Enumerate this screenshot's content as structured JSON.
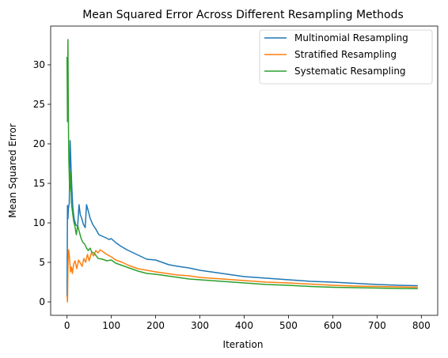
{
  "chart_data": {
    "type": "line",
    "title": "Mean Squared Error Across Different Resampling Methods",
    "xlabel": "Iteration",
    "ylabel": "Mean Squared Error",
    "xlim": [
      -37,
      837
    ],
    "ylim": [
      -1.7,
      34.9
    ],
    "xticks": [
      0,
      100,
      200,
      300,
      400,
      500,
      600,
      700,
      800
    ],
    "yticks": [
      0,
      5,
      10,
      15,
      20,
      25,
      30
    ],
    "grid": false,
    "legend_position": "top-right",
    "series": [
      {
        "name": "Multinomial Resampling",
        "color": "#1f77b4",
        "points": [
          [
            0,
            0.8
          ],
          [
            1,
            12.2
          ],
          [
            2,
            10.5
          ],
          [
            3,
            11.8
          ],
          [
            5,
            12.5
          ],
          [
            7,
            20.4
          ],
          [
            9,
            17.0
          ],
          [
            11,
            14.2
          ],
          [
            13,
            12.0
          ],
          [
            16,
            10.5
          ],
          [
            20,
            9.7
          ],
          [
            24,
            9.6
          ],
          [
            27,
            12.3
          ],
          [
            30,
            11.0
          ],
          [
            33,
            10.6
          ],
          [
            37,
            9.8
          ],
          [
            41,
            9.4
          ],
          [
            44,
            12.3
          ],
          [
            48,
            11.5
          ],
          [
            52,
            10.6
          ],
          [
            58,
            9.8
          ],
          [
            65,
            9.2
          ],
          [
            72,
            8.5
          ],
          [
            80,
            8.3
          ],
          [
            88,
            8.1
          ],
          [
            95,
            7.9
          ],
          [
            100,
            8.0
          ],
          [
            110,
            7.5
          ],
          [
            120,
            7.1
          ],
          [
            135,
            6.6
          ],
          [
            150,
            6.2
          ],
          [
            165,
            5.8
          ],
          [
            180,
            5.4
          ],
          [
            200,
            5.3
          ],
          [
            215,
            5.0
          ],
          [
            230,
            4.7
          ],
          [
            250,
            4.5
          ],
          [
            275,
            4.3
          ],
          [
            300,
            4.0
          ],
          [
            325,
            3.8
          ],
          [
            350,
            3.6
          ],
          [
            375,
            3.4
          ],
          [
            400,
            3.2
          ],
          [
            450,
            3.0
          ],
          [
            500,
            2.8
          ],
          [
            550,
            2.6
          ],
          [
            600,
            2.5
          ],
          [
            650,
            2.35
          ],
          [
            700,
            2.2
          ],
          [
            750,
            2.1
          ],
          [
            792,
            2.05
          ]
        ]
      },
      {
        "name": "Stratified Resampling",
        "color": "#ff7f0e",
        "points": [
          [
            0,
            0.8
          ],
          [
            1,
            0.0
          ],
          [
            2,
            4.0
          ],
          [
            3,
            6.6
          ],
          [
            4,
            6.5
          ],
          [
            6,
            5.2
          ],
          [
            8,
            3.8
          ],
          [
            10,
            4.4
          ],
          [
            12,
            3.6
          ],
          [
            15,
            4.8
          ],
          [
            18,
            5.2
          ],
          [
            22,
            4.2
          ],
          [
            26,
            5.3
          ],
          [
            30,
            4.9
          ],
          [
            34,
            4.5
          ],
          [
            38,
            5.5
          ],
          [
            42,
            5.0
          ],
          [
            46,
            6.0
          ],
          [
            50,
            5.2
          ],
          [
            55,
            6.2
          ],
          [
            60,
            5.8
          ],
          [
            65,
            6.5
          ],
          [
            70,
            6.2
          ],
          [
            75,
            6.6
          ],
          [
            80,
            6.4
          ],
          [
            90,
            6.0
          ],
          [
            100,
            5.7
          ],
          [
            110,
            5.3
          ],
          [
            125,
            5.0
          ],
          [
            140,
            4.6
          ],
          [
            160,
            4.2
          ],
          [
            180,
            4.0
          ],
          [
            200,
            3.8
          ],
          [
            225,
            3.6
          ],
          [
            250,
            3.4
          ],
          [
            275,
            3.3
          ],
          [
            300,
            3.1
          ],
          [
            350,
            2.9
          ],
          [
            400,
            2.7
          ],
          [
            450,
            2.5
          ],
          [
            500,
            2.4
          ],
          [
            550,
            2.25
          ],
          [
            600,
            2.1
          ],
          [
            650,
            2.0
          ],
          [
            700,
            1.95
          ],
          [
            750,
            1.9
          ],
          [
            792,
            1.85
          ]
        ]
      },
      {
        "name": "Systematic Resampling",
        "color": "#2ca02c",
        "points": [
          [
            0,
            31.0
          ],
          [
            1,
            22.8
          ],
          [
            2,
            33.2
          ],
          [
            3,
            23.5
          ],
          [
            4,
            18.0
          ],
          [
            6,
            14.0
          ],
          [
            8,
            16.5
          ],
          [
            10,
            12.5
          ],
          [
            12,
            11.5
          ],
          [
            15,
            10.2
          ],
          [
            18,
            9.5
          ],
          [
            21,
            8.5
          ],
          [
            24,
            9.7
          ],
          [
            28,
            8.8
          ],
          [
            32,
            8.0
          ],
          [
            36,
            7.5
          ],
          [
            40,
            7.3
          ],
          [
            44,
            6.8
          ],
          [
            48,
            6.5
          ],
          [
            52,
            6.8
          ],
          [
            56,
            6.3
          ],
          [
            60,
            6.2
          ],
          [
            65,
            5.9
          ],
          [
            70,
            5.5
          ],
          [
            80,
            5.4
          ],
          [
            90,
            5.2
          ],
          [
            100,
            5.3
          ],
          [
            110,
            4.9
          ],
          [
            125,
            4.6
          ],
          [
            140,
            4.3
          ],
          [
            160,
            3.9
          ],
          [
            180,
            3.6
          ],
          [
            200,
            3.5
          ],
          [
            225,
            3.3
          ],
          [
            250,
            3.1
          ],
          [
            275,
            2.9
          ],
          [
            300,
            2.8
          ],
          [
            350,
            2.6
          ],
          [
            400,
            2.4
          ],
          [
            450,
            2.2
          ],
          [
            500,
            2.1
          ],
          [
            550,
            1.95
          ],
          [
            600,
            1.85
          ],
          [
            650,
            1.8
          ],
          [
            700,
            1.75
          ],
          [
            750,
            1.7
          ],
          [
            792,
            1.68
          ]
        ]
      }
    ]
  }
}
